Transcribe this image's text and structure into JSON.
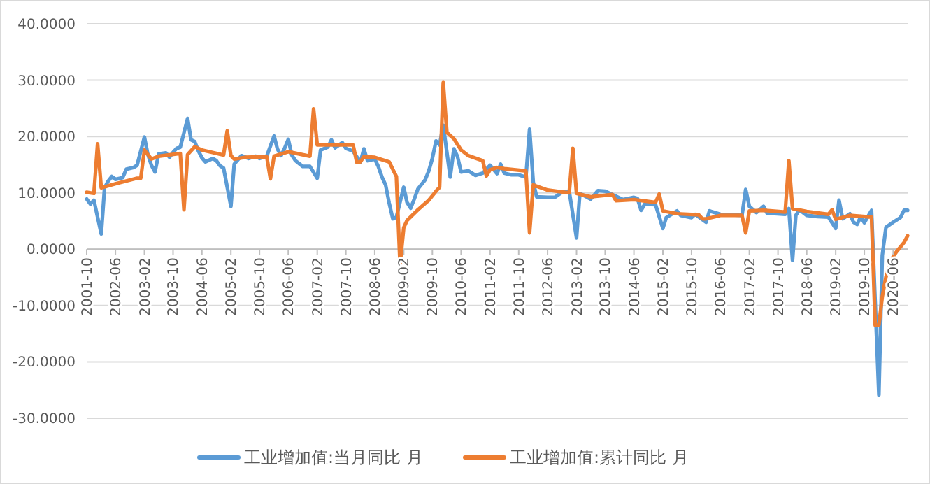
{
  "chart_data": {
    "type": "line",
    "xlim": [
      "2001-10",
      "2020-10"
    ],
    "xticks": [
      "2001-10",
      "2002-06",
      "2003-02",
      "2003-10",
      "2004-06",
      "2005-02",
      "2005-10",
      "2006-06",
      "2007-02",
      "2007-10",
      "2008-06",
      "2009-02",
      "2009-10",
      "2010-06",
      "2011-02",
      "2011-10",
      "2012-06",
      "2013-02",
      "2013-10",
      "2014-06",
      "2015-02",
      "2015-10",
      "2016-06",
      "2017-02",
      "2017-10",
      "2018-06",
      "2019-02",
      "2019-10",
      "2020-06"
    ],
    "ylim": [
      -30,
      40
    ],
    "yticks": [
      {
        "value": -30,
        "label": "-30.0000"
      },
      {
        "value": -20,
        "label": "-20.0000"
      },
      {
        "value": -10,
        "label": "-10.0000"
      },
      {
        "value": 0,
        "label": "0.0000"
      },
      {
        "value": 10,
        "label": "10.0000"
      },
      {
        "value": 20,
        "label": "20.0000"
      },
      {
        "value": 30,
        "label": "30.0000"
      },
      {
        "value": 40,
        "label": "40.0000"
      }
    ],
    "grid": "y",
    "legend": "bottom",
    "marker": "none",
    "line_style": "solid",
    "series": [
      {
        "name": "工业增加值:当月同比 月",
        "color": "#5b9bd5",
        "x": [
          "2001-10",
          "2001-11",
          "2001-12",
          "2002-02",
          "2002-03",
          "2002-04",
          "2002-05",
          "2002-06",
          "2002-08",
          "2002-09",
          "2002-11",
          "2002-12",
          "2003-02",
          "2003-03",
          "2003-04",
          "2003-05",
          "2003-06",
          "2003-08",
          "2003-09",
          "2003-10",
          "2003-11",
          "2003-12",
          "2004-02",
          "2004-03",
          "2004-04",
          "2004-05",
          "2004-06",
          "2004-07",
          "2004-09",
          "2004-10",
          "2004-11",
          "2004-12",
          "2005-02",
          "2005-03",
          "2005-05",
          "2005-07",
          "2005-09",
          "2005-10",
          "2005-12",
          "2006-02",
          "2006-03",
          "2006-04",
          "2006-05",
          "2006-06",
          "2006-07",
          "2006-08",
          "2006-10",
          "2006-12",
          "2007-02",
          "2007-03",
          "2007-05",
          "2007-06",
          "2007-07",
          "2007-09",
          "2007-10",
          "2007-12",
          "2008-02",
          "2008-03",
          "2008-04",
          "2008-06",
          "2008-07",
          "2008-08",
          "2008-09",
          "2008-10",
          "2008-11",
          "2008-12",
          "2009-02",
          "2009-03",
          "2009-04",
          "2009-05",
          "2009-06",
          "2009-08",
          "2009-09",
          "2009-10",
          "2009-11",
          "2009-12",
          "2010-01",
          "2010-03",
          "2010-04",
          "2010-05",
          "2010-06",
          "2010-08",
          "2010-10",
          "2010-12",
          "2011-02",
          "2011-04",
          "2011-05",
          "2011-06",
          "2011-08",
          "2011-10",
          "2011-12",
          "2012-01",
          "2012-02",
          "2012-03",
          "2012-06",
          "2012-08",
          "2012-10",
          "2012-12",
          "2013-02",
          "2013-03",
          "2013-06",
          "2013-08",
          "2013-10",
          "2013-12",
          "2014-03",
          "2014-06",
          "2014-07",
          "2014-08",
          "2014-09",
          "2014-12",
          "2015-02",
          "2015-03",
          "2015-06",
          "2015-07",
          "2015-10",
          "2015-11",
          "2016-02",
          "2016-03",
          "2016-06",
          "2016-12",
          "2017-01",
          "2017-02",
          "2017-04",
          "2017-06",
          "2017-07",
          "2017-12",
          "2018-01",
          "2018-02",
          "2018-03",
          "2018-04",
          "2018-06",
          "2018-09",
          "2018-12",
          "2019-02",
          "2019-03",
          "2019-04",
          "2019-06",
          "2019-07",
          "2019-08",
          "2019-09",
          "2019-10",
          "2019-12",
          "2020-02",
          "2020-03",
          "2020-04",
          "2020-06",
          "2020-08",
          "2020-09",
          "2020-10"
        ],
        "values": [
          8.9,
          8.0,
          8.7,
          2.7,
          10.9,
          12.1,
          12.9,
          12.4,
          12.7,
          14.2,
          14.5,
          14.9,
          19.9,
          16.9,
          14.9,
          13.7,
          16.9,
          17.1,
          16.3,
          17.2,
          17.9,
          18.1,
          23.2,
          19.4,
          19.1,
          17.5,
          16.2,
          15.5,
          16.1,
          15.7,
          14.8,
          14.4,
          7.6,
          15.1,
          16.6,
          16.1,
          16.5,
          16.1,
          16.5,
          20.1,
          17.8,
          16.6,
          17.9,
          19.5,
          16.7,
          15.7,
          14.7,
          14.7,
          12.6,
          17.6,
          18.1,
          19.4,
          18.0,
          18.9,
          17.9,
          17.4,
          15.4,
          17.8,
          15.7,
          16.0,
          14.7,
          12.8,
          11.4,
          8.2,
          5.4,
          5.7,
          11.0,
          8.3,
          7.3,
          8.9,
          10.7,
          12.3,
          13.9,
          16.1,
          19.2,
          18.5,
          22.0,
          12.8,
          17.8,
          16.5,
          13.7,
          13.9,
          13.1,
          13.5,
          14.9,
          13.4,
          15.1,
          13.5,
          13.2,
          13.2,
          12.8,
          21.3,
          11.9,
          9.3,
          9.2,
          9.2,
          10.1,
          10.3,
          2.0,
          9.9,
          8.9,
          10.4,
          10.3,
          9.7,
          8.8,
          9.2,
          9.0,
          6.9,
          8.0,
          7.9,
          3.7,
          5.6,
          6.8,
          6.0,
          5.6,
          6.2,
          4.8,
          6.8,
          6.2,
          6.0,
          10.6,
          7.6,
          6.5,
          7.6,
          6.4,
          6.2,
          7.2,
          -2.0,
          6.0,
          7.0,
          6.0,
          5.8,
          5.7,
          3.7,
          8.7,
          5.4,
          6.3,
          4.8,
          4.4,
          5.8,
          4.7,
          6.9,
          -25.9,
          -1.1,
          3.9,
          4.8,
          5.6,
          6.9,
          6.9
        ]
      },
      {
        "name": "工业增加值:累计同比 月",
        "color": "#ed7d31",
        "x": [
          "2001-10",
          "2001-12",
          "2002-01",
          "2002-02",
          "2002-06",
          "2002-12",
          "2003-01",
          "2003-02",
          "2003-04",
          "2003-06",
          "2003-12",
          "2004-01",
          "2004-02",
          "2004-04",
          "2004-06",
          "2004-10",
          "2004-12",
          "2005-01",
          "2005-02",
          "2005-03",
          "2005-06",
          "2005-12",
          "2006-01",
          "2006-02",
          "2006-06",
          "2006-12",
          "2007-01",
          "2007-02",
          "2007-06",
          "2007-12",
          "2008-01",
          "2008-02",
          "2008-03",
          "2008-06",
          "2008-10",
          "2008-12",
          "2009-01",
          "2009-02",
          "2009-03",
          "2009-06",
          "2009-09",
          "2009-11",
          "2009-12",
          "2010-01",
          "2010-02",
          "2010-04",
          "2010-06",
          "2010-08",
          "2010-12",
          "2011-01",
          "2011-02",
          "2011-04",
          "2011-06",
          "2011-12",
          "2012-01",
          "2012-02",
          "2012-06",
          "2012-12",
          "2013-01",
          "2013-02",
          "2013-06",
          "2013-12",
          "2014-01",
          "2014-06",
          "2014-12",
          "2015-01",
          "2015-02",
          "2015-06",
          "2015-12",
          "2016-01",
          "2016-02",
          "2016-06",
          "2016-12",
          "2017-01",
          "2017-02",
          "2017-06",
          "2017-12",
          "2018-01",
          "2018-02",
          "2018-06",
          "2018-12",
          "2019-01",
          "2019-02",
          "2019-06",
          "2019-12",
          "2020-01",
          "2020-02",
          "2020-03",
          "2020-04",
          "2020-05",
          "2020-06",
          "2020-07",
          "2020-08",
          "2020-09",
          "2020-10"
        ],
        "values": [
          10.1,
          9.9,
          18.7,
          10.9,
          11.6,
          12.6,
          12.6,
          17.6,
          16.0,
          16.5,
          17.0,
          7.0,
          16.8,
          18.2,
          17.6,
          17.0,
          16.7,
          21.0,
          16.6,
          16.0,
          16.3,
          16.4,
          12.5,
          16.5,
          17.3,
          16.5,
          24.9,
          18.5,
          18.5,
          18.5,
          15.4,
          15.5,
          16.4,
          16.3,
          15.5,
          12.9,
          -2.8,
          3.8,
          5.1,
          7.0,
          8.7,
          10.3,
          11.0,
          29.6,
          20.7,
          19.6,
          17.6,
          16.6,
          15.7,
          13.0,
          14.1,
          14.5,
          14.3,
          13.9,
          2.9,
          11.4,
          10.5,
          10.0,
          17.9,
          9.9,
          9.3,
          9.7,
          8.6,
          8.8,
          8.3,
          9.8,
          6.8,
          6.3,
          6.1,
          5.4,
          5.4,
          6.0,
          6.0,
          2.9,
          6.8,
          6.9,
          6.6,
          15.7,
          7.2,
          6.7,
          6.2,
          7.0,
          5.3,
          6.0,
          5.7,
          -13.5,
          -13.5,
          -8.4,
          -4.9,
          -2.8,
          -1.3,
          -0.4,
          0.4,
          1.2,
          2.4
        ]
      }
    ]
  }
}
